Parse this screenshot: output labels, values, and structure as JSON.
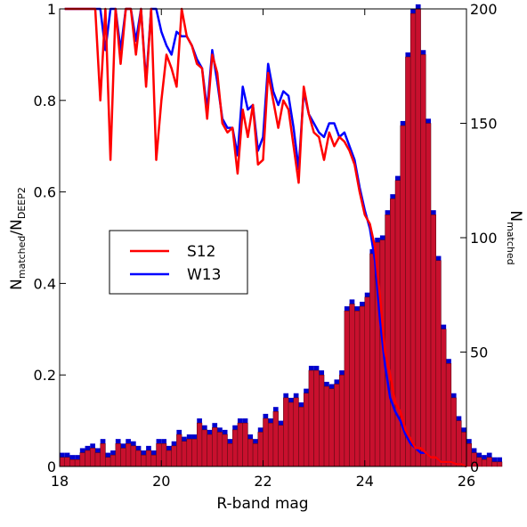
{
  "chart_data": {
    "type": "bar",
    "xlabel": "R-band mag",
    "ylabel_left": {
      "main": "N",
      "sub1": "matched",
      "slash": "/N",
      "sub2": "DEEP2"
    },
    "ylabel_right": {
      "main": "N",
      "sub": "matched"
    },
    "xlim": [
      18,
      26
    ],
    "ylim_left": [
      0,
      1
    ],
    "ylim_right": [
      0,
      200
    ],
    "x_ticks": [
      "18",
      "20",
      "22",
      "24",
      "26"
    ],
    "y_left_ticks": [
      "0",
      "0.2",
      "0.4",
      "0.6",
      "0.8",
      "1"
    ],
    "y_right_ticks": [
      "0",
      "50",
      "100",
      "150",
      "200"
    ],
    "legend_position": "center-left",
    "colors": {
      "S12": "#ff0000",
      "W13": "#0000ff",
      "bar_fill": "#c8102e",
      "bar_back": "#0000cc",
      "bar_front_light": "#ee3030"
    },
    "hist_bin_width": 0.1,
    "hist_x_start": 18.0,
    "hist_W13": [
      4,
      4,
      3,
      3,
      6,
      7,
      8,
      6,
      10,
      4,
      5,
      10,
      8,
      10,
      9,
      7,
      5,
      7,
      5,
      10,
      10,
      7,
      9,
      14,
      11,
      12,
      12,
      19,
      16,
      14,
      17,
      15,
      14,
      10,
      16,
      19,
      19,
      12,
      10,
      15,
      21,
      19,
      24,
      18,
      30,
      28,
      30,
      26,
      32,
      42,
      42,
      40,
      35,
      34,
      36,
      40,
      68,
      71,
      68,
      70,
      74,
      93,
      98,
      99,
      110,
      117,
      125,
      149,
      179,
      198,
      200,
      180,
      150,
      110,
      90,
      60,
      45,
      30,
      20,
      15,
      10,
      6,
      4,
      3,
      4,
      2,
      2
    ],
    "hist_S12": [
      4,
      4,
      3,
      3,
      6,
      7,
      8,
      6,
      10,
      4,
      5,
      10,
      8,
      10,
      9,
      7,
      5,
      7,
      5,
      10,
      10,
      7,
      9,
      14,
      11,
      12,
      12,
      19,
      16,
      14,
      17,
      15,
      14,
      10,
      16,
      19,
      19,
      12,
      10,
      15,
      21,
      19,
      24,
      18,
      30,
      28,
      30,
      26,
      32,
      42,
      42,
      40,
      35,
      34,
      36,
      40,
      68,
      71,
      68,
      70,
      74,
      93,
      98,
      99,
      110,
      117,
      125,
      149,
      179,
      198,
      200,
      180,
      150,
      110,
      90,
      60,
      45,
      30,
      20,
      15,
      10,
      6,
      4,
      3,
      4,
      2,
      2
    ],
    "series": [
      {
        "name": "S12",
        "x": [
          18.1,
          18.3,
          18.5,
          18.7,
          18.8,
          18.9,
          19.0,
          19.1,
          19.2,
          19.3,
          19.4,
          19.5,
          19.6,
          19.7,
          19.8,
          19.9,
          20.0,
          20.1,
          20.2,
          20.3,
          20.4,
          20.5,
          20.6,
          20.7,
          20.8,
          20.9,
          21.0,
          21.1,
          21.2,
          21.3,
          21.4,
          21.5,
          21.6,
          21.7,
          21.8,
          21.9,
          22.0,
          22.1,
          22.2,
          22.3,
          22.4,
          22.5,
          22.6,
          22.7,
          22.8,
          22.9,
          23.0,
          23.1,
          23.2,
          23.3,
          23.4,
          23.5,
          23.6,
          23.7,
          23.8,
          23.9,
          24.0,
          24.1,
          24.2,
          24.3,
          24.4,
          24.5,
          24.6,
          24.7,
          24.8,
          24.9,
          25.0,
          25.1,
          25.2,
          25.3,
          25.4,
          25.5,
          25.6,
          25.7,
          25.8,
          25.9,
          26.0
        ],
        "y": [
          1.0,
          1.0,
          1.0,
          1.0,
          0.8,
          1.0,
          0.67,
          1.0,
          0.88,
          1.0,
          1.0,
          0.9,
          1.0,
          0.83,
          1.0,
          0.67,
          0.8,
          0.9,
          0.87,
          0.83,
          1.0,
          0.94,
          0.92,
          0.88,
          0.87,
          0.76,
          0.9,
          0.86,
          0.75,
          0.73,
          0.74,
          0.64,
          0.78,
          0.72,
          0.79,
          0.66,
          0.67,
          0.86,
          0.8,
          0.74,
          0.8,
          0.78,
          0.7,
          0.62,
          0.83,
          0.77,
          0.73,
          0.72,
          0.67,
          0.73,
          0.7,
          0.72,
          0.71,
          0.69,
          0.66,
          0.6,
          0.55,
          0.53,
          0.48,
          0.37,
          0.25,
          0.2,
          0.14,
          0.12,
          0.08,
          0.06,
          0.04,
          0.04,
          0.03,
          0.02,
          0.02,
          0.01,
          0.01,
          0.01,
          0.005,
          0.005,
          0.0
        ]
      },
      {
        "name": "W13",
        "x": [
          18.1,
          18.3,
          18.5,
          18.7,
          18.8,
          18.9,
          19.0,
          19.1,
          19.2,
          19.3,
          19.4,
          19.5,
          19.6,
          19.7,
          19.8,
          19.9,
          20.0,
          20.1,
          20.2,
          20.3,
          20.4,
          20.5,
          20.6,
          20.7,
          20.8,
          20.9,
          21.0,
          21.1,
          21.2,
          21.3,
          21.4,
          21.5,
          21.6,
          21.7,
          21.8,
          21.9,
          22.0,
          22.1,
          22.2,
          22.3,
          22.4,
          22.5,
          22.6,
          22.7,
          22.8,
          22.9,
          23.0,
          23.1,
          23.2,
          23.3,
          23.4,
          23.5,
          23.6,
          23.7,
          23.8,
          23.9,
          24.0,
          24.1,
          24.2,
          24.3,
          24.4,
          24.5,
          24.6,
          24.7,
          24.8,
          24.9,
          25.0,
          25.1,
          25.2,
          25.3,
          25.4,
          25.5,
          25.6,
          25.7,
          25.8,
          25.9,
          26.0
        ],
        "y": [
          1.0,
          1.0,
          1.0,
          1.0,
          1.0,
          0.91,
          1.0,
          1.0,
          0.91,
          1.0,
          1.0,
          0.93,
          1.0,
          0.84,
          1.0,
          1.0,
          0.95,
          0.92,
          0.9,
          0.95,
          0.94,
          0.94,
          0.92,
          0.89,
          0.87,
          0.78,
          0.91,
          0.84,
          0.76,
          0.74,
          0.74,
          0.68,
          0.83,
          0.78,
          0.79,
          0.69,
          0.72,
          0.88,
          0.82,
          0.79,
          0.82,
          0.81,
          0.74,
          0.65,
          0.82,
          0.77,
          0.75,
          0.73,
          0.72,
          0.75,
          0.75,
          0.72,
          0.73,
          0.7,
          0.67,
          0.61,
          0.56,
          0.52,
          0.45,
          0.32,
          0.22,
          0.15,
          0.12,
          0.1,
          0.07,
          0.05,
          0.04,
          0.03,
          0.03,
          0.02,
          0.02,
          0.01,
          0.01,
          0.01,
          0.005,
          0.005,
          0.0
        ]
      }
    ]
  }
}
